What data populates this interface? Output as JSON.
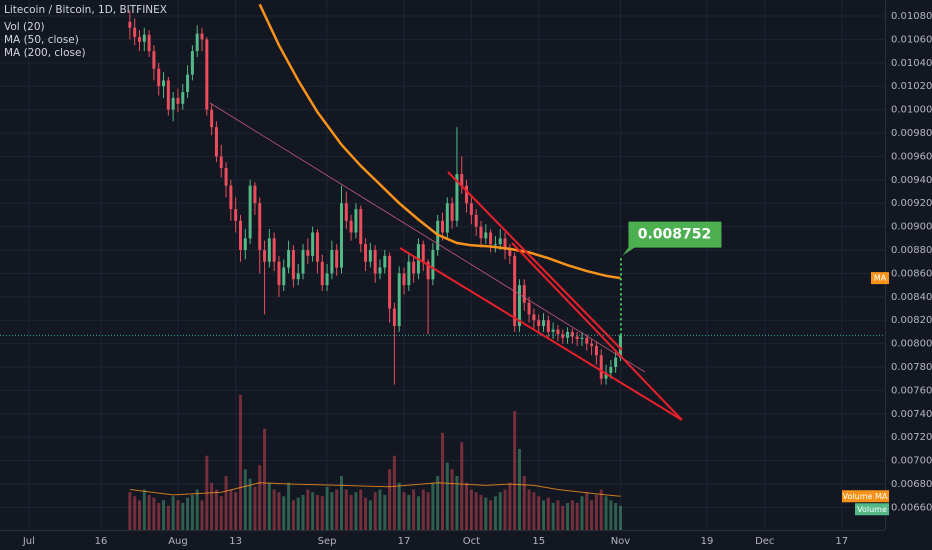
{
  "chart_data": {
    "type": "candlestick",
    "title": "Litecoin / Bitcoin, 1D, BITFINEX",
    "indicators": [
      "Vol (20)",
      "MA (50, close)",
      "MA (200, close)"
    ],
    "up_color": "#53b987",
    "down_color": "#eb4d5c",
    "grid": true,
    "xlim": [
      -6,
      178
    ],
    "xticks": [
      {
        "value": 0,
        "label": "Jul"
      },
      {
        "value": 15,
        "label": "16"
      },
      {
        "value": 31,
        "label": "Aug"
      },
      {
        "value": 43,
        "label": "13"
      },
      {
        "value": 62,
        "label": "Sep"
      },
      {
        "value": 78,
        "label": "17"
      },
      {
        "value": 92,
        "label": "Oct"
      },
      {
        "value": 106,
        "label": "15"
      },
      {
        "value": 123,
        "label": "Nov"
      },
      {
        "value": 141,
        "label": "19"
      },
      {
        "value": 153,
        "label": "Dec"
      },
      {
        "value": 169,
        "label": "17"
      }
    ],
    "ylim": [
      0.006407,
      0.010937
    ],
    "yticks": [
      {
        "value": 0.0108,
        "label": "0.010800"
      },
      {
        "value": 0.0106,
        "label": "0.010600"
      },
      {
        "value": 0.0104,
        "label": "0.010400"
      },
      {
        "value": 0.0102,
        "label": "0.010200"
      },
      {
        "value": 0.01,
        "label": "0.010000"
      },
      {
        "value": 0.0098,
        "label": "0.009800"
      },
      {
        "value": 0.0096,
        "label": "0.009600"
      },
      {
        "value": 0.0094,
        "label": "0.009400"
      },
      {
        "value": 0.0092,
        "label": "0.009200"
      },
      {
        "value": 0.009,
        "label": "0.009000"
      },
      {
        "value": 0.0088,
        "label": "0.008800"
      },
      {
        "value": 0.0086,
        "label": "0.008600"
      },
      {
        "value": 0.0084,
        "label": "0.008400"
      },
      {
        "value": 0.0082,
        "label": "0.008200"
      },
      {
        "value": 0.008,
        "label": "0.008000"
      },
      {
        "value": 0.0078,
        "label": "0.007800"
      },
      {
        "value": 0.0076,
        "label": "0.007600"
      },
      {
        "value": 0.0074,
        "label": "0.007400"
      },
      {
        "value": 0.0072,
        "label": "0.007200"
      },
      {
        "value": 0.007,
        "label": "0.007000"
      },
      {
        "value": 0.0068,
        "label": "0.006800"
      },
      {
        "value": 0.0066,
        "label": "0.006600"
      }
    ],
    "x": [
      21,
      22,
      23,
      24,
      25,
      26,
      27,
      28,
      29,
      30,
      31,
      32,
      33,
      34,
      35,
      36,
      37,
      38,
      39,
      40,
      41,
      42,
      43,
      44,
      45,
      46,
      47,
      48,
      49,
      50,
      51,
      52,
      53,
      54,
      55,
      56,
      57,
      58,
      59,
      60,
      61,
      62,
      63,
      64,
      65,
      66,
      67,
      68,
      69,
      70,
      71,
      72,
      73,
      74,
      75,
      76,
      77,
      78,
      79,
      80,
      81,
      82,
      83,
      84,
      85,
      86,
      87,
      88,
      89,
      90,
      91,
      92,
      93,
      94,
      95,
      96,
      97,
      98,
      99,
      100,
      101,
      102,
      103,
      104,
      105,
      106,
      107,
      108,
      109,
      110,
      111,
      112,
      113,
      114,
      115,
      116,
      117,
      118,
      119,
      120,
      121,
      122,
      123
    ],
    "open": [
      0.01075,
      0.0107,
      0.01062,
      0.01058,
      0.01064,
      0.0105,
      0.01035,
      0.0102,
      0.01025,
      0.01,
      0.0101,
      0.01005,
      0.01015,
      0.0103,
      0.0105,
      0.01065,
      0.0106,
      0.01,
      0.00985,
      0.0096,
      0.0095,
      0.00935,
      0.00915,
      0.00905,
      0.0088,
      0.0089,
      0.00935,
      0.0092,
      0.0088,
      0.0087,
      0.0089,
      0.0087,
      0.0085,
      0.00865,
      0.0088,
      0.00855,
      0.0086,
      0.0088,
      0.00875,
      0.00895,
      0.0087,
      0.0085,
      0.0086,
      0.0088,
      0.00865,
      0.0092,
      0.00905,
      0.00895,
      0.00915,
      0.00885,
      0.0087,
      0.0088,
      0.0086,
      0.00865,
      0.00875,
      0.0083,
      0.00815,
      0.0086,
      0.0085,
      0.0087,
      0.0086,
      0.00885,
      0.0087,
      0.00855,
      0.0088,
      0.00905,
      0.00895,
      0.0092,
      0.00905,
      0.00945,
      0.00935,
      0.0092,
      0.0091,
      0.009,
      0.0089,
      0.00895,
      0.00885,
      0.00885,
      0.0089,
      0.0088,
      0.00875,
      0.00815,
      0.0085,
      0.00835,
      0.00825,
      0.0082,
      0.00815,
      0.0082,
      0.0081,
      0.00812,
      0.00808,
      0.00805,
      0.0081,
      0.00806,
      0.00804,
      0.00805,
      0.008,
      0.00798,
      0.0079,
      0.0077,
      0.00775,
      0.0078,
      0.00788
    ],
    "high": [
      0.01085,
      0.01078,
      0.01068,
      0.0107,
      0.01068,
      0.01055,
      0.0104,
      0.01032,
      0.01028,
      0.01015,
      0.01018,
      0.01022,
      0.01038,
      0.01055,
      0.01072,
      0.0107,
      0.01062,
      0.01005,
      0.0099,
      0.0097,
      0.00955,
      0.0094,
      0.00925,
      0.0091,
      0.00898,
      0.0094,
      0.00938,
      0.00925,
      0.00888,
      0.00898,
      0.00895,
      0.00875,
      0.00872,
      0.00888,
      0.00884,
      0.00868,
      0.00885,
      0.0089,
      0.009,
      0.00898,
      0.00876,
      0.00868,
      0.00888,
      0.00885,
      0.00935,
      0.0093,
      0.0091,
      0.0092,
      0.00918,
      0.0089,
      0.00886,
      0.00884,
      0.00872,
      0.0088,
      0.00878,
      0.00835,
      0.00866,
      0.00865,
      0.00878,
      0.00875,
      0.0089,
      0.00888,
      0.00872,
      0.00886,
      0.0091,
      0.00912,
      0.00925,
      0.00925,
      0.00985,
      0.0096,
      0.0094,
      0.00925,
      0.00915,
      0.00905,
      0.00902,
      0.00898,
      0.00892,
      0.00898,
      0.00895,
      0.00885,
      0.00878,
      0.00855,
      0.00855,
      0.0084,
      0.0083,
      0.00825,
      0.00826,
      0.00824,
      0.00818,
      0.00816,
      0.00812,
      0.00814,
      0.00813,
      0.0081,
      0.0081,
      0.00808,
      0.00804,
      0.00802,
      0.00795,
      0.00782,
      0.00786,
      0.00795,
      0.00808
    ],
    "low": [
      0.0106,
      0.01055,
      0.0105,
      0.0105,
      0.01045,
      0.01025,
      0.01012,
      0.0101,
      0.00995,
      0.0099,
      0.00998,
      0.01,
      0.0101,
      0.01025,
      0.01045,
      0.0105,
      0.00995,
      0.00978,
      0.00955,
      0.00942,
      0.00925,
      0.00905,
      0.00895,
      0.0087,
      0.00872,
      0.00885,
      0.0091,
      0.0086,
      0.00825,
      0.00865,
      0.00862,
      0.0084,
      0.00845,
      0.0086,
      0.00848,
      0.0085,
      0.00855,
      0.00868,
      0.0087,
      0.0086,
      0.00845,
      0.00845,
      0.00855,
      0.00858,
      0.0086,
      0.00898,
      0.00888,
      0.0089,
      0.00878,
      0.00862,
      0.00865,
      0.00852,
      0.00855,
      0.0086,
      0.00818,
      0.00765,
      0.0081,
      0.00842,
      0.00845,
      0.00852,
      0.00855,
      0.00862,
      0.00808,
      0.0085,
      0.00875,
      0.00888,
      0.0089,
      0.00898,
      0.009,
      0.00928,
      0.00912,
      0.00902,
      0.00892,
      0.00882,
      0.00885,
      0.00878,
      0.00878,
      0.0088,
      0.00872,
      0.00868,
      0.0081,
      0.0081,
      0.00828,
      0.00818,
      0.00812,
      0.00808,
      0.0081,
      0.00805,
      0.00804,
      0.00802,
      0.008,
      0.008,
      0.008,
      0.00798,
      0.00798,
      0.00794,
      0.0079,
      0.00782,
      0.00765,
      0.00765,
      0.0077,
      0.00775,
      0.00785
    ],
    "close": [
      0.0107,
      0.01062,
      0.01058,
      0.01064,
      0.0105,
      0.01035,
      0.0102,
      0.01025,
      0.01,
      0.0101,
      0.01005,
      0.01015,
      0.0103,
      0.0105,
      0.01065,
      0.0106,
      0.01,
      0.00985,
      0.0096,
      0.0095,
      0.00935,
      0.00915,
      0.00905,
      0.0088,
      0.0089,
      0.00935,
      0.0092,
      0.0088,
      0.0087,
      0.0089,
      0.0087,
      0.0085,
      0.00865,
      0.0088,
      0.00855,
      0.0086,
      0.0088,
      0.00875,
      0.00895,
      0.0087,
      0.0085,
      0.0086,
      0.0088,
      0.00865,
      0.0092,
      0.00905,
      0.00895,
      0.00915,
      0.00885,
      0.0087,
      0.0088,
      0.0086,
      0.00865,
      0.00875,
      0.0083,
      0.00815,
      0.0086,
      0.0085,
      0.0087,
      0.0086,
      0.00885,
      0.0087,
      0.00855,
      0.0088,
      0.00905,
      0.00895,
      0.0092,
      0.00905,
      0.00945,
      0.00935,
      0.0092,
      0.0091,
      0.009,
      0.0089,
      0.00895,
      0.00885,
      0.00885,
      0.0089,
      0.0088,
      0.00875,
      0.00815,
      0.0085,
      0.00835,
      0.00825,
      0.0082,
      0.00815,
      0.0082,
      0.0081,
      0.00812,
      0.00808,
      0.00805,
      0.0081,
      0.00806,
      0.00804,
      0.00805,
      0.008,
      0.00798,
      0.0079,
      0.0077,
      0.00775,
      0.0078,
      0.00788,
      0.00807
    ],
    "volume": {
      "ylim": [
        0,
        100
      ],
      "values": [
        28,
        25,
        22,
        30,
        26,
        24,
        20,
        22,
        18,
        25,
        22,
        20,
        24,
        26,
        30,
        22,
        55,
        35,
        30,
        25,
        40,
        30,
        28,
        100,
        45,
        38,
        32,
        48,
        75,
        35,
        30,
        28,
        25,
        35,
        22,
        24,
        26,
        30,
        28,
        26,
        25,
        32,
        28,
        30,
        40,
        30,
        26,
        28,
        30,
        24,
        22,
        28,
        30,
        26,
        45,
        55,
        35,
        28,
        26,
        30,
        25,
        30,
        28,
        35,
        40,
        72,
        50,
        45,
        40,
        65,
        35,
        30,
        28,
        26,
        24,
        22,
        25,
        28,
        30,
        35,
        88,
        60,
        40,
        30,
        28,
        25,
        22,
        24,
        20,
        22,
        18,
        20,
        22,
        20,
        25,
        28,
        22,
        26,
        30,
        25,
        22,
        20,
        18
      ]
    },
    "ma50": {
      "name": "MA",
      "color": "#f7931a",
      "x": [
        48,
        52,
        56,
        60,
        65,
        69,
        73,
        77,
        81,
        85,
        89,
        92,
        96,
        100,
        104,
        108,
        112,
        116,
        120,
        123
      ],
      "values": [
        0.0109,
        0.01055,
        0.01025,
        0.00998,
        0.0097,
        0.00952,
        0.00936,
        0.0092,
        0.00906,
        0.00893,
        0.00886,
        0.00884,
        0.00883,
        0.00881,
        0.00878,
        0.00873,
        0.00867,
        0.00862,
        0.00858,
        0.00856
      ]
    },
    "volume_ma": {
      "name": "Volume MA",
      "color": "#f7931a",
      "x": [
        21,
        30,
        40,
        48,
        55,
        65,
        75,
        85,
        95,
        100,
        105,
        110,
        115,
        120,
        123
      ],
      "values": [
        30,
        26,
        28,
        35,
        34,
        33,
        32,
        35,
        33,
        34,
        33,
        30,
        28,
        26,
        25
      ]
    },
    "volume_tag": "Volume",
    "target": 0.008752
  }
}
